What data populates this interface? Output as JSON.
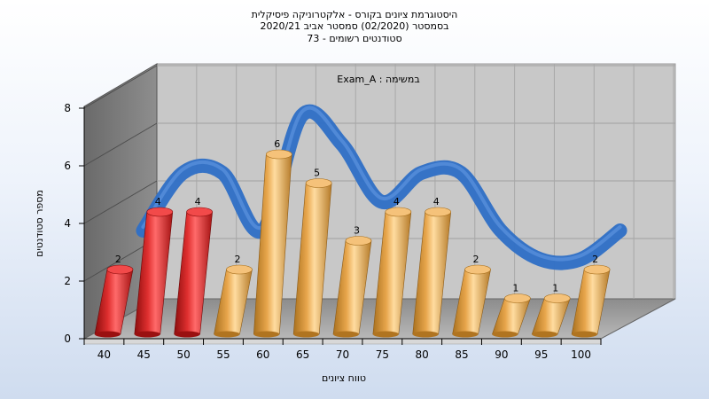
{
  "chart_data": {
    "type": "bar",
    "title_lines": [
      "היסטוגרמת ציונים בקורס - אלקטרוניקה פיסיקלית",
      "בסמסטר (02/2020) סמסטר אביב 2020/21",
      "סטודנטים רשומים - 73"
    ],
    "annotation": "Exam_A : במשימה",
    "xlabel": "טווח ציונים",
    "ylabel": "מספר סטודנטים",
    "categories": [
      "40",
      "45",
      "50",
      "55",
      "60",
      "65",
      "70",
      "75",
      "80",
      "85",
      "90",
      "95",
      "100"
    ],
    "values": [
      2,
      4,
      4,
      2,
      6,
      5,
      3,
      4,
      4,
      2,
      1,
      1,
      2
    ],
    "data_labels": [
      "2",
      "4",
      "4",
      "2",
      "6",
      "5",
      "3",
      "4",
      "4",
      "2",
      "1",
      "1",
      "2"
    ],
    "yticks": [
      "0",
      "2",
      "4",
      "6",
      "8"
    ],
    "ylim": [
      0,
      8
    ],
    "bar_colors": [
      "#d81e1e",
      "#d81e1e",
      "#d81e1e",
      "#e8a64c",
      "#e8a64c",
      "#e8a64c",
      "#e8a64c",
      "#e8a64c",
      "#e8a64c",
      "#e8a64c",
      "#e8a64c",
      "#e8a64c",
      "#e8a64c"
    ],
    "failing_color": "#d81e1e",
    "passing_color": "#e8a64c",
    "curve_color": "#2e6fc6",
    "grid": true
  }
}
